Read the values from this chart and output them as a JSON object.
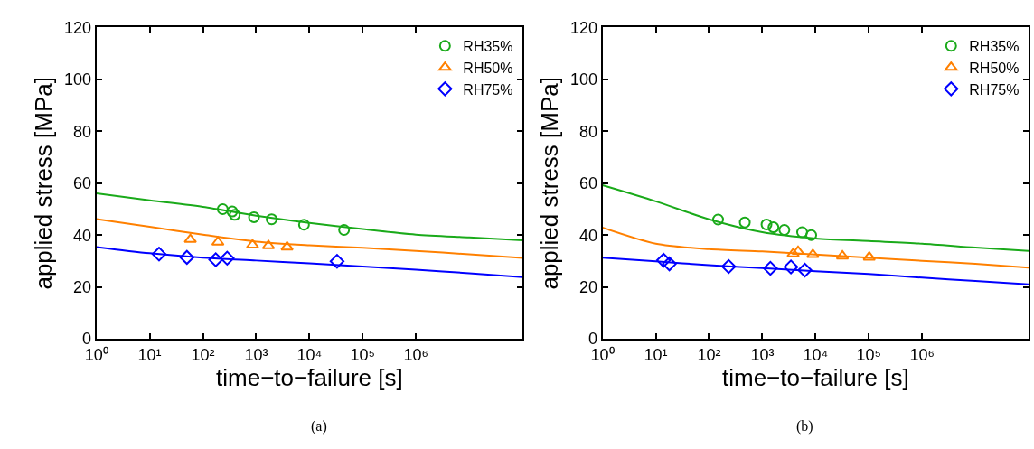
{
  "chart_data": [
    {
      "type": "scatter",
      "xlabel": "time−to−failure [s]",
      "ylabel": "applied stress [MPa]",
      "log": "x",
      "xlim": [
        1,
        100000000
      ],
      "ylim": [
        0,
        120
      ],
      "xticks": [
        {
          "value": 1,
          "label": "10⁰"
        },
        {
          "value": 10,
          "label": "10¹"
        },
        {
          "value": 100,
          "label": "10²"
        },
        {
          "value": 1000,
          "label": "10³"
        },
        {
          "value": 10000,
          "label": "10⁴"
        },
        {
          "value": 100000,
          "label": "10⁵"
        },
        {
          "value": 1000000,
          "label": "10⁶"
        }
      ],
      "yticks": [
        0,
        20,
        40,
        60,
        80,
        100,
        120
      ],
      "legend": "top right",
      "annotations": [
        "(a)"
      ],
      "series": [
        {
          "name": "RH35%",
          "marker": "circle",
          "color": "#1aaa1a",
          "x": [
            235,
            355,
            395,
            910,
            1950,
            7900,
            44700
          ],
          "values": [
            50.0,
            49.1,
            47.8,
            46.9,
            46.1,
            44.0,
            42.0
          ]
        },
        {
          "name": "RH50%",
          "marker": "triangle",
          "color": "#ff8000",
          "x": [
            58,
            191,
            855,
            1700,
            3800
          ],
          "values": [
            38.3,
            37.3,
            36.2,
            35.9,
            35.4
          ]
        },
        {
          "name": "RH75%",
          "marker": "diamond",
          "color": "#0000ff",
          "x": [
            15,
            50,
            174,
            285,
            33000
          ],
          "values": [
            32.7,
            31.4,
            30.5,
            31.1,
            29.9
          ]
        },
        {
          "type": "line",
          "marker": "none",
          "color": "#1aaa1a",
          "x": [
            1,
            10,
            100,
            1000,
            10000,
            100000,
            1000000,
            10000000,
            100000000
          ],
          "values": [
            56.1,
            53.4,
            50.9,
            47.5,
            44.7,
            42.3,
            40.2,
            39.1,
            38.0
          ]
        },
        {
          "type": "line",
          "marker": "none",
          "color": "#ff8000",
          "x": [
            1,
            10,
            100,
            1000,
            10000,
            100000,
            1000000,
            10000000,
            100000000
          ],
          "values": [
            46.2,
            43.2,
            40.2,
            37.5,
            36.1,
            35.1,
            33.9,
            32.6,
            31.2
          ]
        },
        {
          "type": "line",
          "marker": "none",
          "color": "#0000ff",
          "x": [
            1,
            10,
            100,
            1000,
            10000,
            100000,
            1000000,
            10000000,
            100000000
          ],
          "values": [
            35.4,
            33.0,
            31.3,
            30.2,
            29.1,
            27.9,
            26.7,
            25.3,
            23.8
          ]
        }
      ]
    },
    {
      "type": "scatter",
      "xlabel": "time−to−failure [s]",
      "ylabel": "applied stress [MPa]",
      "log": "x",
      "xlim": [
        1,
        100000000
      ],
      "ylim": [
        0,
        120
      ],
      "xticks": [
        {
          "value": 1,
          "label": "10⁰"
        },
        {
          "value": 10,
          "label": "10¹"
        },
        {
          "value": 100,
          "label": "10²"
        },
        {
          "value": 1000,
          "label": "10³"
        },
        {
          "value": 10000,
          "label": "10⁴"
        },
        {
          "value": 100000,
          "label": "10⁵"
        },
        {
          "value": 1000000,
          "label": "10⁶"
        }
      ],
      "yticks": [
        0,
        20,
        40,
        60,
        80,
        100,
        120
      ],
      "legend": "top right",
      "annotations": [
        "(b)"
      ],
      "series": [
        {
          "name": "RH35%",
          "marker": "circle",
          "color": "#1aaa1a",
          "x": [
            148,
            470,
            1200,
            1620,
            2600,
            5600,
            8300
          ],
          "values": [
            46.0,
            44.9,
            44.1,
            43.0,
            42.0,
            41.1,
            40.0
          ]
        },
        {
          "name": "RH50%",
          "marker": "triangle",
          "color": "#ff8000",
          "x": [
            3800,
            4700,
            8900,
            32000,
            102000
          ],
          "values": [
            32.8,
            33.7,
            32.5,
            31.9,
            31.5
          ]
        },
        {
          "name": "RH75%",
          "marker": "diamond",
          "color": "#0000ff",
          "x": [
            14,
            18,
            234,
            1420,
            3450,
            6300
          ],
          "values": [
            30.3,
            28.9,
            27.9,
            27.2,
            27.7,
            26.5
          ]
        },
        {
          "type": "line",
          "marker": "none",
          "color": "#1aaa1a",
          "x": [
            1,
            10,
            100,
            1000,
            10000,
            100000,
            1000000,
            10000000,
            100000000
          ],
          "values": [
            59.2,
            53.0,
            46.1,
            41.1,
            38.7,
            37.7,
            36.7,
            35.2,
            33.9
          ]
        },
        {
          "type": "line",
          "marker": "none",
          "color": "#ff8000",
          "x": [
            1,
            10,
            100,
            1000,
            10000,
            100000,
            1000000,
            10000000,
            100000000
          ],
          "values": [
            42.9,
            36.7,
            34.6,
            33.7,
            32.5,
            31.3,
            30.1,
            28.9,
            27.5
          ]
        },
        {
          "type": "line",
          "marker": "none",
          "color": "#0000ff",
          "x": [
            1,
            10,
            100,
            1000,
            10000,
            100000,
            1000000,
            10000000,
            100000000
          ],
          "values": [
            31.3,
            29.9,
            28.4,
            27.3,
            26.1,
            25.0,
            23.6,
            22.3,
            21.0
          ]
        }
      ]
    }
  ]
}
